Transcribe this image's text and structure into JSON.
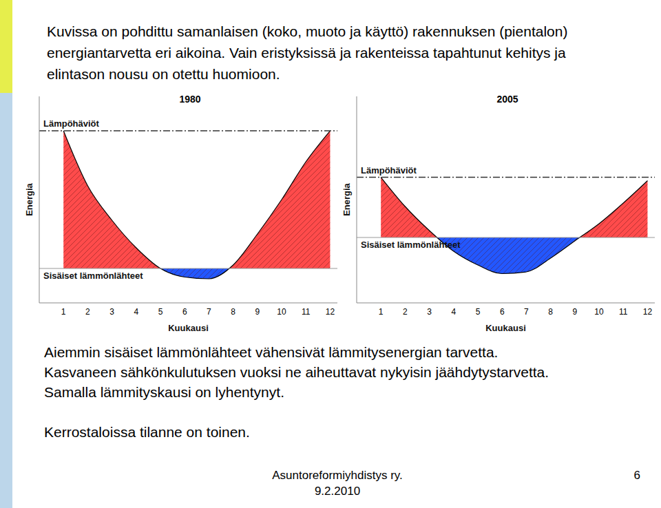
{
  "slide": {
    "intro": "Kuvissa on pohdittu samanlaisen (koko, muoto ja käyttö) rakennuksen (pientalon) energiantarvetta eri aikoina. Vain eristyksissä ja rakenteissa tapahtunut kehitys ja elintason nousu on otettu huomioon.",
    "notes": [
      "Aiemmin sisäiset lämmönlähteet vähensivät lämmitysenergian tarvetta.",
      "Kasvaneen sähkönkulutuksen vuoksi ne aiheuttavat nykyisin jäähdytystarvetta.",
      "Samalla lämmityskausi on lyhentynyt."
    ],
    "final_note": "Kerrostaloissa tilanne on toinen.",
    "footer": {
      "organization": "Asuntoreformiyhdistys ry.",
      "date": "9.2.2010"
    },
    "page": 6
  },
  "chart_data": [
    {
      "type": "area",
      "title": "1980",
      "x": [
        1,
        2,
        3,
        4,
        5,
        6,
        7,
        8,
        9,
        10,
        11,
        12
      ],
      "values": [
        100,
        68,
        48,
        32,
        20,
        15,
        14,
        22,
        40,
        60,
        82,
        100
      ],
      "xlim": [
        0,
        12.3
      ],
      "xticks": [
        1,
        2,
        3,
        4,
        5,
        6,
        7,
        8,
        9,
        10,
        11,
        12
      ],
      "ylim": [
        0,
        120
      ],
      "x_label": "Kuukausi",
      "y_label": "Energia",
      "tick_labels": "x",
      "colors": [
        "#ff4b4b",
        "#2357ff"
      ],
      "annotations": [
        {
          "text": "Lämpöhäviöt",
          "value": 100,
          "line_style": "dashdot"
        },
        {
          "text": "Sisäiset lämmönlähteet",
          "value": 20,
          "line_style": "solid"
        }
      ]
    },
    {
      "type": "area",
      "title": "2005",
      "x": [
        1,
        2,
        3,
        4,
        5,
        6,
        7,
        8,
        9,
        10,
        11,
        12
      ],
      "values": [
        73,
        56,
        42,
        30,
        22,
        17,
        18,
        26,
        36,
        46,
        58,
        71
      ],
      "xlim": [
        0,
        12.3
      ],
      "xticks": [
        1,
        2,
        3,
        4,
        5,
        6,
        7,
        8,
        9,
        10,
        11,
        12
      ],
      "ylim": [
        0,
        120
      ],
      "x_label": "Kuukausi",
      "y_label": "Energia",
      "tick_labels": "x",
      "colors": [
        "#ff4b4b",
        "#2357ff"
      ],
      "annotations": [
        {
          "text": "Lämpöhäviöt",
          "value": 73,
          "line_style": "dashdot"
        },
        {
          "text": "Sisäiset lämmönlähteet",
          "value": 38,
          "line_style": "solid"
        }
      ]
    }
  ]
}
